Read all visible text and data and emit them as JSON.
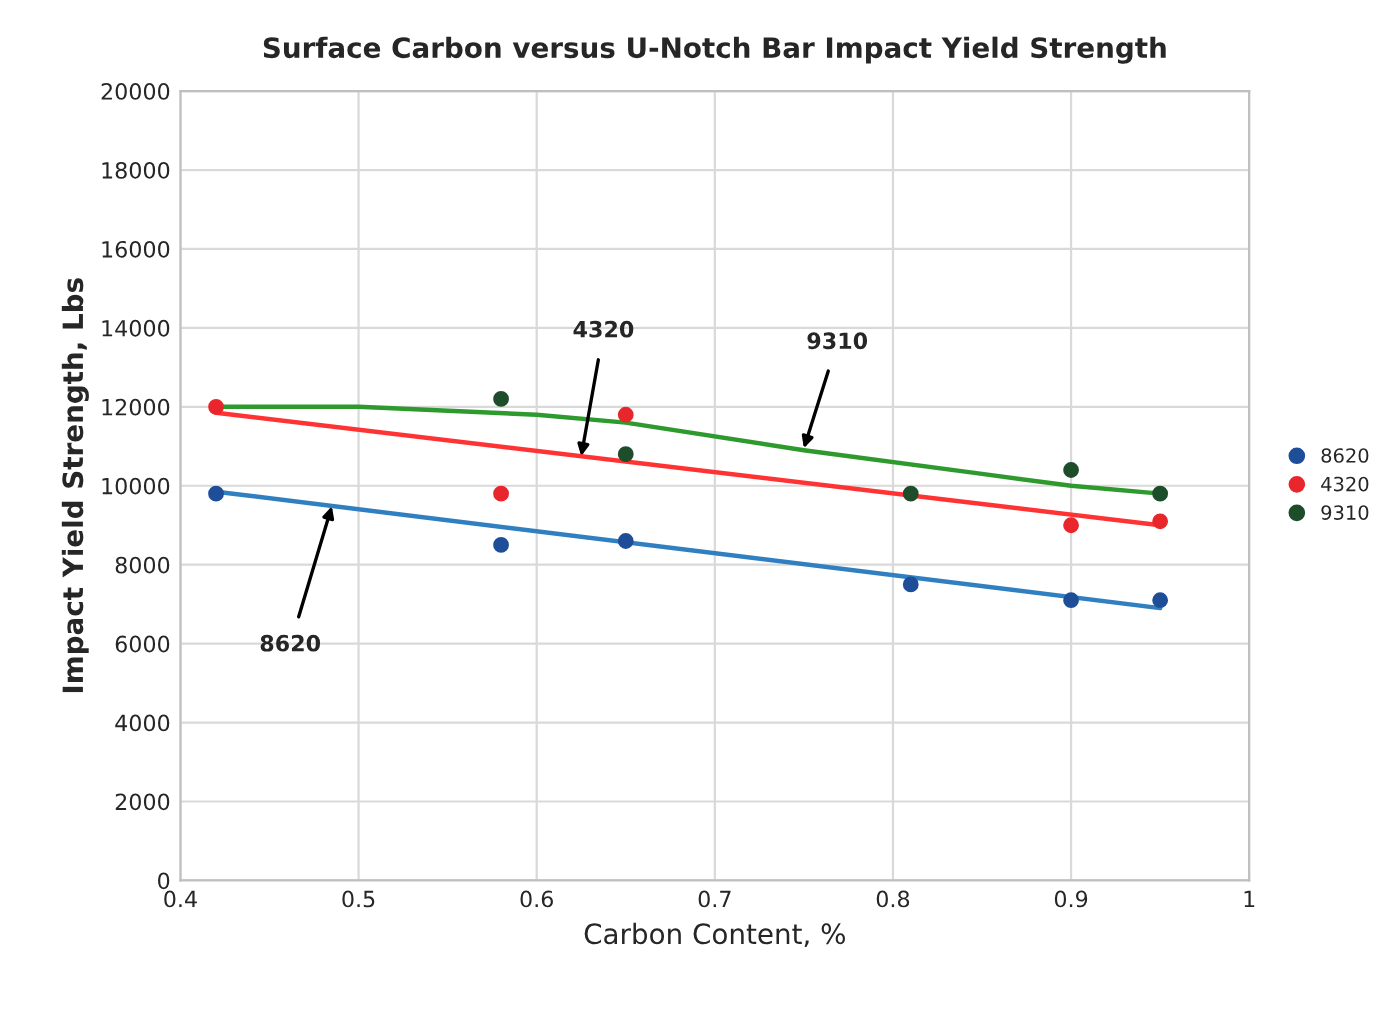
{
  "chart_data": {
    "type": "scatter",
    "title": "Surface Carbon versus U-Notch Bar Impact Yield Strength",
    "xlabel": "Carbon Content, %",
    "ylabel": "Impact Yield Strength, Lbs",
    "x": [
      0.42,
      0.58,
      0.65,
      0.81,
      0.9,
      0.95
    ],
    "series": [
      {
        "name": "8620",
        "color": "#1f4e99",
        "values": [
          9800,
          8500,
          8600,
          7500,
          7100,
          7100
        ]
      },
      {
        "name": "4320",
        "color": "#e8262b",
        "values": [
          12000,
          9800,
          11800,
          null,
          9000,
          9100
        ]
      },
      {
        "name": "9310",
        "color": "#1e4d2b",
        "values": [
          null,
          12200,
          10800,
          9800,
          10400,
          9800
        ]
      },
      {
        "type": "line",
        "marker": "none",
        "color": "#2f7fc1",
        "x": [
          0.42,
          0.95
        ],
        "values": [
          9850,
          6900
        ]
      },
      {
        "type": "line",
        "marker": "none",
        "color": "#ff3333",
        "x": [
          0.42,
          0.95
        ],
        "values": [
          11850,
          9000
        ]
      },
      {
        "type": "line",
        "marker": "none",
        "color": "#2e9a2e",
        "x": [
          0.42,
          0.5,
          0.6,
          0.65,
          0.75,
          0.85,
          0.9,
          0.95
        ],
        "values": [
          12000,
          12000,
          11800,
          11600,
          10900,
          10300,
          10000,
          9800
        ]
      }
    ],
    "annotations": [
      {
        "text": "4320",
        "x": 0.625,
        "y": 10750
      },
      {
        "text": "9310",
        "x": 0.75,
        "y": 10950
      },
      {
        "text": "8620",
        "x": 0.485,
        "y": 9480
      }
    ],
    "xlim": [
      0.4,
      1
    ],
    "xticks": [
      0.4,
      0.5,
      0.6,
      0.7,
      0.8,
      0.9,
      1
    ],
    "ylim": [
      0,
      20000
    ],
    "yticks": [
      0,
      2000,
      4000,
      6000,
      8000,
      10000,
      12000,
      14000,
      16000,
      18000,
      20000
    ],
    "grid": true,
    "legend": "right",
    "marker": "circle"
  }
}
